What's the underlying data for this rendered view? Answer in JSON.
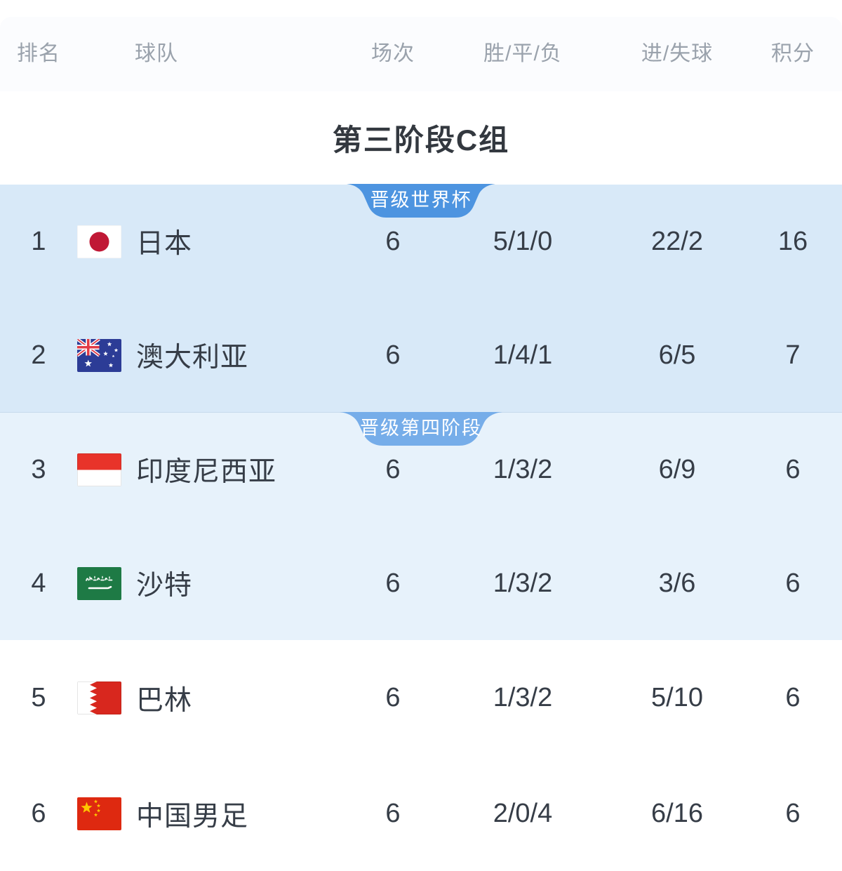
{
  "table": {
    "columns": [
      {
        "key": "rank",
        "label": "排名"
      },
      {
        "key": "team",
        "label": "球队"
      },
      {
        "key": "matches",
        "label": "场次"
      },
      {
        "key": "wdl",
        "label": "胜/平/负"
      },
      {
        "key": "goals",
        "label": "进/失球"
      },
      {
        "key": "points",
        "label": "积分"
      }
    ],
    "group_title": "第三阶段C组",
    "sections": [
      {
        "badge": "晋级世界杯",
        "badge_color": "#4d94e0",
        "badge_width": 212,
        "bg": "#d8e9f8",
        "rows": [
          {
            "rank": "1",
            "team": "日本",
            "flag": "japan",
            "matches": "6",
            "wdl": "5/1/0",
            "goals": "22/2",
            "points": "16"
          },
          {
            "rank": "2",
            "team": "澳大利亚",
            "flag": "australia",
            "matches": "6",
            "wdl": "1/4/1",
            "goals": "6/5",
            "points": "7"
          }
        ]
      },
      {
        "badge": "晋级第四阶段",
        "badge_color": "#76ade9",
        "badge_width": 232,
        "bg": "#e7f2fb",
        "rows": [
          {
            "rank": "3",
            "team": "印度尼西亚",
            "flag": "indonesia",
            "matches": "6",
            "wdl": "1/3/2",
            "goals": "6/9",
            "points": "6"
          },
          {
            "rank": "4",
            "team": "沙特",
            "flag": "saudi-arabia",
            "matches": "6",
            "wdl": "1/3/2",
            "goals": "3/6",
            "points": "6"
          }
        ]
      },
      {
        "badge": null,
        "badge_color": null,
        "badge_width": 0,
        "bg": "#ffffff",
        "rows": [
          {
            "rank": "5",
            "team": "巴林",
            "flag": "bahrain",
            "matches": "6",
            "wdl": "1/3/2",
            "goals": "5/10",
            "points": "6"
          },
          {
            "rank": "6",
            "team": "中国男足",
            "flag": "china",
            "matches": "6",
            "wdl": "2/0/4",
            "goals": "6/16",
            "points": "6"
          }
        ]
      }
    ]
  },
  "colors": {
    "header_text": "#9aa2ac",
    "cell_text": "#363d47",
    "title_text": "#33383f",
    "section1_bg": "#d8e9f8",
    "section2_bg": "#e7f2fb",
    "section3_bg": "#ffffff",
    "badge1_bg": "#4d94e0",
    "badge2_bg": "#76ade9"
  }
}
